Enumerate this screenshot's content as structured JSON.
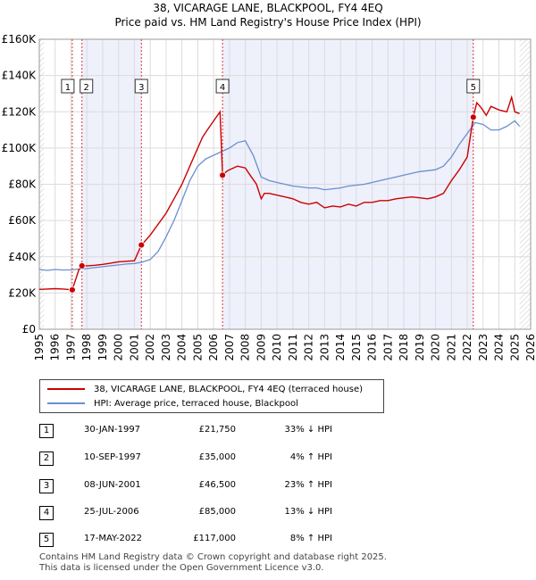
{
  "title_line1": "38, VICARAGE LANE, BLACKPOOL, FY4 4EQ",
  "title_line2": "Price paid vs. HM Land Registry's House Price Index (HPI)",
  "chart_data": {
    "type": "line",
    "title": "38, VICARAGE LANE, BLACKPOOL, FY4 4EQ — Price paid vs. HM Land Registry's House Price Index (HPI)",
    "xlabel": "",
    "ylabel": "",
    "xlim": [
      1995,
      2026
    ],
    "ylim": [
      0,
      160000
    ],
    "y_ticks": [
      0,
      20000,
      40000,
      60000,
      80000,
      100000,
      120000,
      140000,
      160000
    ],
    "y_tick_labels": [
      "£0",
      "£20K",
      "£40K",
      "£60K",
      "£80K",
      "£100K",
      "£120K",
      "£140K",
      "£160K"
    ],
    "x_ticks": [
      1995,
      1996,
      1997,
      1998,
      1999,
      2000,
      2001,
      2002,
      2003,
      2004,
      2005,
      2006,
      2007,
      2008,
      2009,
      2010,
      2011,
      2012,
      2013,
      2014,
      2015,
      2016,
      2017,
      2018,
      2019,
      2020,
      2021,
      2022,
      2023,
      2024,
      2025,
      2026
    ],
    "x_tick_labels": [
      "1995",
      "1996",
      "1997",
      "1998",
      "1999",
      "2000",
      "2001",
      "2002",
      "2003",
      "2004",
      "2005",
      "2006",
      "2007",
      "2008",
      "2009",
      "2010",
      "2011",
      "2012",
      "2013",
      "2014",
      "2015",
      "2016",
      "2017",
      "2018",
      "2019",
      "2020",
      "2021",
      "2022",
      "2023",
      "2024",
      "2025",
      "2026"
    ],
    "grid": true,
    "legend_position": "below",
    "series": [
      {
        "name": "38, VICARAGE LANE, BLACKPOOL, FY4 4EQ (terraced house)",
        "color": "#cc0000",
        "x": [
          1995.0,
          1995.5,
          1996.0,
          1996.5,
          1997.08,
          1997.5,
          1997.69,
          1998.0,
          1998.5,
          1999.0,
          1999.5,
          2000.0,
          2000.5,
          2001.0,
          2001.44,
          2001.7,
          2002.0,
          2002.5,
          2003.0,
          2003.5,
          2004.0,
          2004.5,
          2005.0,
          2005.3,
          2005.6,
          2006.0,
          2006.4,
          2006.56,
          2006.8,
          2007.0,
          2007.5,
          2008.0,
          2008.3,
          2008.7,
          2009.0,
          2009.2,
          2009.5,
          2010.0,
          2010.5,
          2011.0,
          2011.5,
          2012.0,
          2012.5,
          2013.0,
          2013.5,
          2014.0,
          2014.5,
          2015.0,
          2015.5,
          2016.0,
          2016.5,
          2017.0,
          2017.5,
          2018.0,
          2018.5,
          2019.0,
          2019.5,
          2020.0,
          2020.5,
          2021.0,
          2021.5,
          2022.0,
          2022.38,
          2022.6,
          2022.9,
          2023.2,
          2023.5,
          2024.0,
          2024.5,
          2024.8,
          2025.0,
          2025.3
        ],
        "values": [
          22000,
          22200,
          22400,
          22200,
          21750,
          33000,
          35000,
          35000,
          35300,
          35800,
          36500,
          37200,
          37500,
          37800,
          46500,
          49000,
          52000,
          58000,
          64000,
          72000,
          80000,
          90000,
          100000,
          106000,
          110000,
          115000,
          120000,
          85000,
          87000,
          88000,
          90000,
          89000,
          85000,
          80000,
          72000,
          75000,
          75000,
          74000,
          73000,
          72000,
          70000,
          69000,
          70000,
          67000,
          68000,
          67500,
          69000,
          68000,
          70000,
          70000,
          71000,
          71000,
          72000,
          72500,
          73000,
          72500,
          72000,
          73000,
          75000,
          82000,
          88000,
          95000,
          117000,
          125000,
          122000,
          118000,
          123000,
          121000,
          120000,
          128000,
          120000,
          119000
        ]
      },
      {
        "name": "HPI: Average price, terraced house, Blackpool",
        "color": "#6a8fd0",
        "x": [
          1995.0,
          1995.5,
          1996.0,
          1996.5,
          1997.0,
          1997.5,
          1998.0,
          1998.5,
          1999.0,
          1999.5,
          2000.0,
          2000.5,
          2001.0,
          2001.5,
          2002.0,
          2002.5,
          2003.0,
          2003.5,
          2004.0,
          2004.5,
          2005.0,
          2005.5,
          2006.0,
          2006.5,
          2007.0,
          2007.5,
          2008.0,
          2008.5,
          2009.0,
          2009.5,
          2010.0,
          2010.5,
          2011.0,
          2011.5,
          2012.0,
          2012.5,
          2013.0,
          2013.5,
          2014.0,
          2014.5,
          2015.0,
          2015.5,
          2016.0,
          2016.5,
          2017.0,
          2017.5,
          2018.0,
          2018.5,
          2019.0,
          2019.5,
          2020.0,
          2020.5,
          2021.0,
          2021.5,
          2022.0,
          2022.5,
          2023.0,
          2023.5,
          2024.0,
          2024.5,
          2025.0,
          2025.3
        ],
        "values": [
          33000,
          32500,
          33000,
          32700,
          32800,
          33200,
          33500,
          34000,
          34500,
          35000,
          35500,
          36000,
          36300,
          37000,
          38500,
          43000,
          51000,
          60000,
          71000,
          82000,
          90000,
          94000,
          96000,
          98000,
          100000,
          103000,
          104000,
          96000,
          84000,
          82000,
          81000,
          80000,
          79000,
          78500,
          78000,
          78000,
          77000,
          77500,
          78000,
          79000,
          79500,
          80000,
          81000,
          82000,
          83000,
          84000,
          85000,
          86000,
          87000,
          87500,
          88000,
          90000,
          95000,
          102000,
          108000,
          114000,
          113000,
          110000,
          110000,
          112000,
          115000,
          112000
        ]
      }
    ],
    "sales": [
      {
        "label": "1",
        "x": 1997.08,
        "value": 21750
      },
      {
        "label": "2",
        "x": 1997.69,
        "value": 35000
      },
      {
        "label": "3",
        "x": 2001.44,
        "value": 46500
      },
      {
        "label": "4",
        "x": 2006.56,
        "value": 85000
      },
      {
        "label": "5",
        "x": 2022.38,
        "value": 117000
      }
    ],
    "shaded_ranges": [
      [
        1997.69,
        2001.44
      ],
      [
        2006.56,
        2022.38
      ]
    ],
    "hatched_ranges": [
      [
        1995.0,
        1995.3
      ],
      [
        2025.3,
        2026.0
      ]
    ]
  },
  "legend": {
    "items": [
      {
        "label": "38, VICARAGE LANE, BLACKPOOL, FY4 4EQ (terraced house)",
        "color": "#cc0000"
      },
      {
        "label": "HPI: Average price, terraced house, Blackpool",
        "color": "#6a8fd0"
      }
    ]
  },
  "table": {
    "rows": [
      {
        "num": "1",
        "date": "30-JAN-1997",
        "price": "£21,750",
        "hpi": "33% ↓ HPI"
      },
      {
        "num": "2",
        "date": "10-SEP-1997",
        "price": "£35,000",
        "hpi": "4% ↑ HPI"
      },
      {
        "num": "3",
        "date": "08-JUN-2001",
        "price": "£46,500",
        "hpi": "23% ↑ HPI"
      },
      {
        "num": "4",
        "date": "25-JUL-2006",
        "price": "£85,000",
        "hpi": "13% ↓ HPI"
      },
      {
        "num": "5",
        "date": "17-MAY-2022",
        "price": "£117,000",
        "hpi": "8% ↑ HPI"
      }
    ]
  },
  "footer": {
    "line1": "Contains HM Land Registry data © Crown copyright and database right 2025.",
    "line2": "This data is licensed under the Open Government Licence v3.0."
  }
}
